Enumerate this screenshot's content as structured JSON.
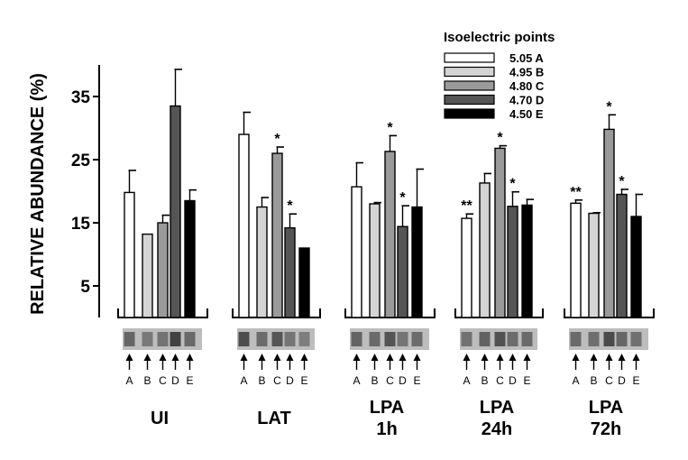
{
  "chart_data": {
    "type": "bar",
    "title": "",
    "ylabel": "RELATIVE ABUNDANCE (%)",
    "xlabel": "",
    "ylim": [
      0,
      40
    ],
    "yticks": [
      5,
      15,
      25,
      35
    ],
    "grid": false,
    "legend_title": "Isoelectric points",
    "legend_position": "top-right",
    "series": [
      {
        "name": "5.05 A",
        "color": "#ffffff"
      },
      {
        "name": "4.95 B",
        "color": "#d4d4d4"
      },
      {
        "name": "4.80 C",
        "color": "#9a9a9a"
      },
      {
        "name": "4.70 D",
        "color": "#555555"
      },
      {
        "name": "4.50 E",
        "color": "#000000"
      }
    ],
    "groups": [
      {
        "label_lines": [
          "UI"
        ],
        "values": [
          19.8,
          13.2,
          15.0,
          33.5,
          18.5
        ],
        "errors": [
          3.5,
          0.0,
          1.2,
          5.8,
          1.7
        ],
        "stars": [
          "",
          "",
          "",
          "",
          ""
        ],
        "lane_letters": [
          "A",
          "B",
          "C",
          "D",
          "E"
        ]
      },
      {
        "label_lines": [
          "LAT"
        ],
        "values": [
          29.0,
          17.5,
          26.0,
          14.2,
          11.0
        ],
        "errors": [
          3.5,
          1.5,
          1.0,
          2.2,
          0.0
        ],
        "stars": [
          "",
          "",
          "*",
          "*",
          ""
        ],
        "lane_letters": [
          "A",
          "B",
          "C",
          "D",
          "E"
        ]
      },
      {
        "label_lines": [
          "LPA",
          "1h"
        ],
        "values": [
          20.7,
          18.0,
          26.3,
          14.4,
          17.5
        ],
        "errors": [
          3.8,
          0.2,
          2.5,
          3.3,
          6.0
        ],
        "stars": [
          "",
          "",
          "*",
          "*",
          ""
        ],
        "lane_letters": [
          "A",
          "B",
          "C",
          "D",
          "E"
        ]
      },
      {
        "label_lines": [
          "LPA",
          "24h"
        ],
        "values": [
          15.7,
          21.3,
          26.8,
          17.6,
          17.8
        ],
        "errors": [
          0.7,
          1.5,
          0.4,
          2.3,
          0.9
        ],
        "stars": [
          "**",
          "",
          "*",
          "*",
          ""
        ],
        "lane_letters": [
          "A",
          "B",
          "C",
          "D",
          "E"
        ]
      },
      {
        "label_lines": [
          "LPA",
          "72h"
        ],
        "values": [
          18.1,
          16.5,
          29.8,
          19.5,
          16.0
        ],
        "errors": [
          0.5,
          0.1,
          2.3,
          0.8,
          3.5
        ],
        "stars": [
          "**",
          "",
          "*",
          "*",
          ""
        ],
        "lane_letters": [
          "A",
          "B",
          "C",
          "D",
          "E"
        ]
      }
    ]
  }
}
